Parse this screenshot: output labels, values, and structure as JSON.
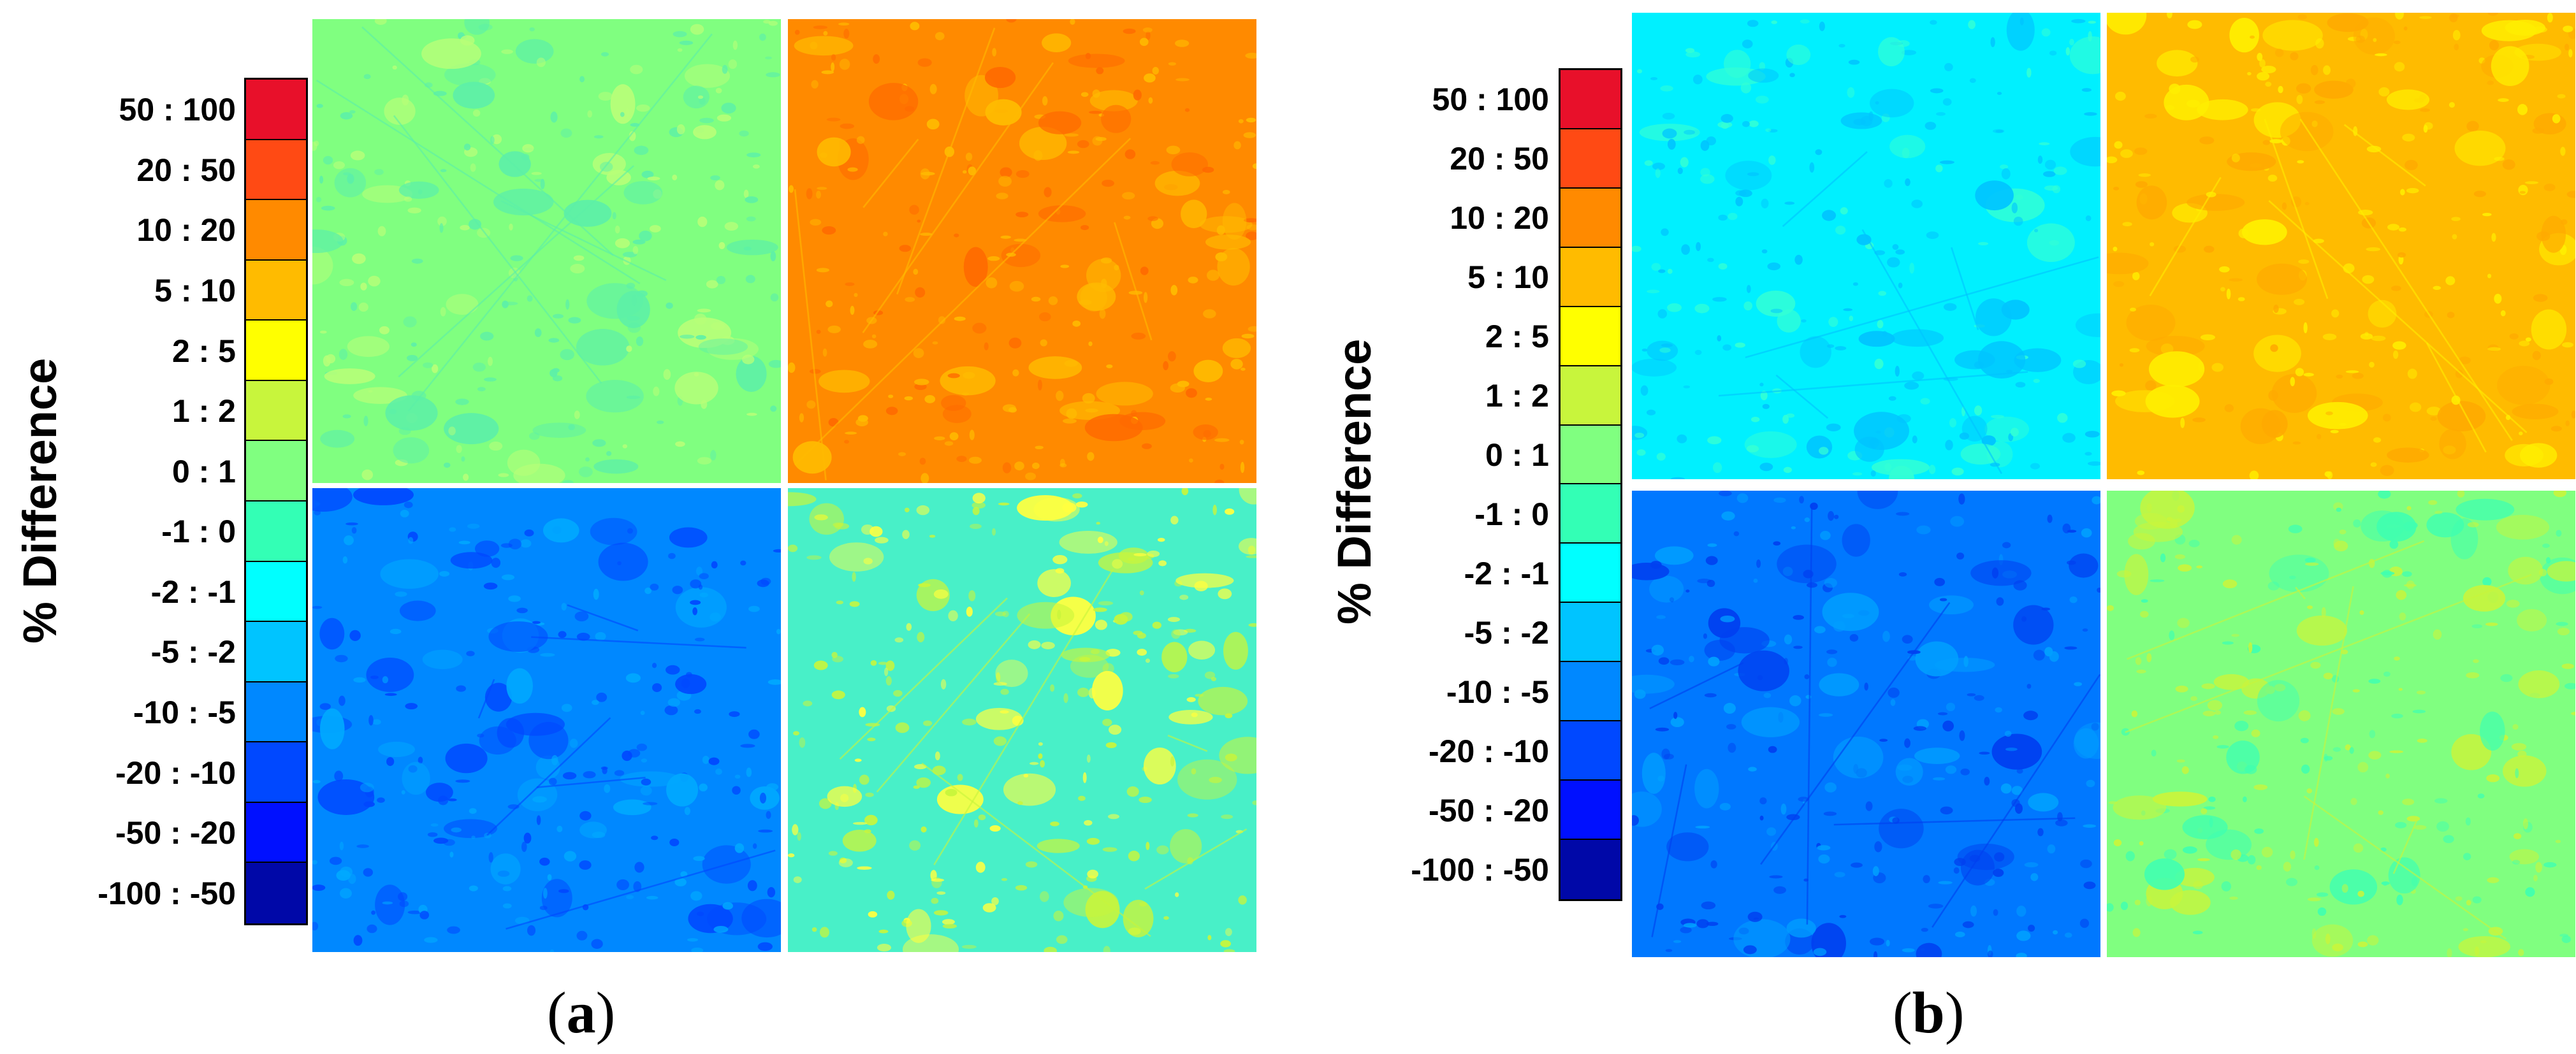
{
  "ylabel": "% Difference",
  "scale": [
    {
      "label": "50 : 100",
      "color": "#e8102a"
    },
    {
      "label": "20 : 50",
      "color": "#ff4a14"
    },
    {
      "label": "10 : 20",
      "color": "#ff8a00"
    },
    {
      "label": "5 : 10",
      "color": "#ffbb00"
    },
    {
      "label": "2 : 5",
      "color": "#ffff00"
    },
    {
      "label": "1 : 2",
      "color": "#c8f53c"
    },
    {
      "label": "0 : 1",
      "color": "#80ff80"
    },
    {
      "label": "-1 : 0",
      "color": "#33ffb5"
    },
    {
      "label": "-2 : -1",
      "color": "#00ffff"
    },
    {
      "label": "-5 : -2",
      "color": "#00c4ff"
    },
    {
      "label": "-10 : -5",
      "color": "#0088ff"
    },
    {
      "label": "-20 : -10",
      "color": "#0048ff"
    },
    {
      "label": "-50 : -20",
      "color": "#0010ff"
    },
    {
      "label": "-100 : -50",
      "color": "#0008a8"
    }
  ],
  "panels": [
    {
      "caption": "a",
      "quadrants": [
        {
          "dominant": "0 : 1",
          "secondary": [
            "-1 : 0",
            "1 : 2"
          ],
          "base": "#80ff80",
          "speck": "#5cf0a8",
          "speck2": "#b8ff78"
        },
        {
          "dominant": "10 : 20",
          "secondary": [
            "5 : 10",
            "20 : 50"
          ],
          "base": "#ff8a00",
          "speck": "#ffbb00",
          "speck2": "#ff6a00"
        },
        {
          "dominant": "-10 : -5",
          "secondary": [
            "-20 : -10",
            "-5 : -2"
          ],
          "base": "#0088ff",
          "speck": "#0048ff",
          "speck2": "#00a8ff"
        },
        {
          "dominant": "-1 : 0",
          "secondary": [
            "1 : 2",
            "2 : 5"
          ],
          "base": "#48f0c8",
          "speck": "#c8f53c",
          "speck2": "#ffff40"
        }
      ]
    },
    {
      "caption": "b",
      "quadrants": [
        {
          "dominant": "-2 : -1",
          "secondary": [
            "-5 : -2",
            "-1 : 0"
          ],
          "base": "#00f0ff",
          "speck": "#00c4ff",
          "speck2": "#33ffd5"
        },
        {
          "dominant": "5 : 10",
          "secondary": [
            "2 : 5",
            "10 : 20"
          ],
          "base": "#ffbb00",
          "speck": "#ffee00",
          "speck2": "#ffaa00"
        },
        {
          "dominant": "-10 : -5",
          "secondary": [
            "-20 : -10",
            "-5 : -2"
          ],
          "base": "#0078ff",
          "speck": "#0040f0",
          "speck2": "#00a0ff"
        },
        {
          "dominant": "0 : 1",
          "secondary": [
            "1 : 2",
            "-1 : 0"
          ],
          "base": "#80ff80",
          "speck": "#c8f53c",
          "speck2": "#40ffb0"
        }
      ]
    }
  ]
}
